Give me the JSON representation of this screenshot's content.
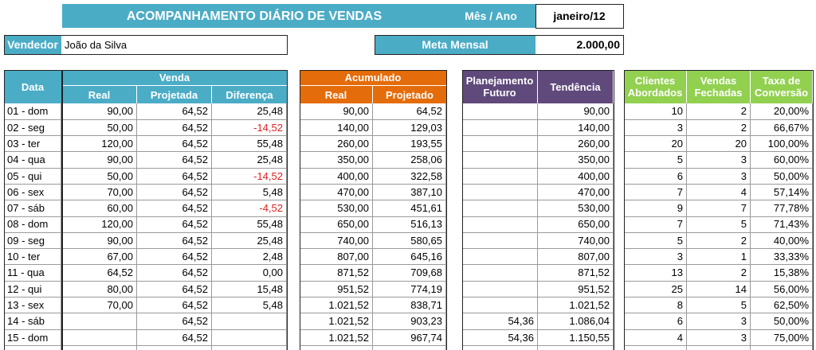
{
  "header": {
    "title": "ACOMPANHAMENTO DIÁRIO DE VENDAS",
    "month_label": "Mês / Ano",
    "month": "janeiro/12",
    "seller_label": "Vendedor",
    "seller": "João da Silva",
    "goal_label": "Meta Mensal",
    "goal": "2.000,00"
  },
  "table": {
    "date_header": "Data",
    "groups": [
      {
        "label": "Venda",
        "columns": [
          "Real",
          "Projetada",
          "Diferença"
        ]
      },
      {
        "label": "Acumulado",
        "columns": [
          "Real",
          "Projetado"
        ]
      }
    ],
    "single_columns": [
      "Planejamento Futuro",
      "Tendência",
      "Clientes Abordados",
      "Vendas Fechadas",
      "Taxa de Conversão"
    ],
    "rows": [
      [
        "01 - dom",
        "90,00",
        "64,52",
        "25,48",
        "90,00",
        "64,52",
        null,
        "90,00",
        "10",
        "2",
        "20,00%"
      ],
      [
        "02 - seg",
        "50,00",
        "64,52",
        "-14,52",
        "140,00",
        "129,03",
        null,
        "140,00",
        "3",
        "2",
        "66,67%"
      ],
      [
        "03 - ter",
        "120,00",
        "64,52",
        "55,48",
        "260,00",
        "193,55",
        null,
        "260,00",
        "20",
        "20",
        "100,00%"
      ],
      [
        "04 - qua",
        "90,00",
        "64,52",
        "25,48",
        "350,00",
        "258,06",
        null,
        "350,00",
        "5",
        "3",
        "60,00%"
      ],
      [
        "05 - qui",
        "50,00",
        "64,52",
        "-14,52",
        "400,00",
        "322,58",
        null,
        "400,00",
        "6",
        "3",
        "50,00%"
      ],
      [
        "06 - sex",
        "70,00",
        "64,52",
        "5,48",
        "470,00",
        "387,10",
        null,
        "470,00",
        "7",
        "4",
        "57,14%"
      ],
      [
        "07 - sáb",
        "60,00",
        "64,52",
        "-4,52",
        "530,00",
        "451,61",
        null,
        "530,00",
        "9",
        "7",
        "77,78%"
      ],
      [
        "08 - dom",
        "120,00",
        "64,52",
        "55,48",
        "650,00",
        "516,13",
        null,
        "650,00",
        "7",
        "5",
        "71,43%"
      ],
      [
        "09 - seg",
        "90,00",
        "64,52",
        "25,48",
        "740,00",
        "580,65",
        null,
        "740,00",
        "5",
        "2",
        "40,00%"
      ],
      [
        "10 - ter",
        "67,00",
        "64,52",
        "2,48",
        "807,00",
        "645,16",
        null,
        "807,00",
        "3",
        "1",
        "33,33%"
      ],
      [
        "11 - qua",
        "64,52",
        "64,52",
        "0,00",
        "871,52",
        "709,68",
        null,
        "871,52",
        "13",
        "2",
        "15,38%"
      ],
      [
        "12 - qui",
        "80,00",
        "64,52",
        "15,48",
        "951,52",
        "774,19",
        null,
        "951,52",
        "25",
        "14",
        "56,00%"
      ],
      [
        "13 - sex",
        "70,00",
        "64,52",
        "5,48",
        "1.021,52",
        "838,71",
        null,
        "1.021,52",
        "8",
        "5",
        "62,50%"
      ],
      [
        "14 - sáb",
        null,
        "64,52",
        null,
        "1.021,52",
        "903,23",
        "54,36",
        "1.086,04",
        "6",
        "3",
        "50,00%"
      ],
      [
        "15 - dom",
        null,
        "64,52",
        null,
        "1.021,52",
        "967,74",
        "54,36",
        "1.150,55",
        "4",
        "3",
        "75,00%"
      ]
    ]
  }
}
